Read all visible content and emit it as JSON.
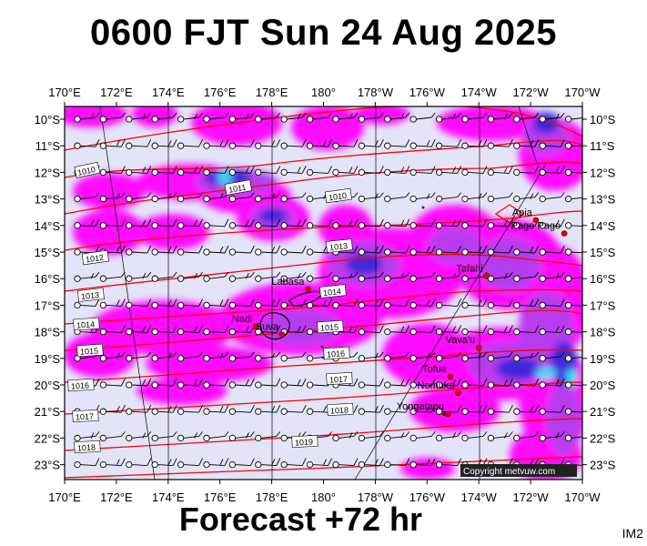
{
  "title": "0600 FJT Sun 24 Aug 2025",
  "subtitle": "Forecast +72 hr",
  "corner_label": "IM2",
  "copyright": "Copyright metvuw.com",
  "lon_ticks": [
    "170°E",
    "172°E",
    "174°E",
    "176°E",
    "178°E",
    "180°",
    "178°W",
    "176°W",
    "174°W",
    "172°W",
    "170°W"
  ],
  "lat_ticks": [
    "10°S",
    "11°S",
    "12°S",
    "13°S",
    "14°S",
    "15°S",
    "16°S",
    "17°S",
    "18°S",
    "19°S",
    "20°S",
    "21°S",
    "22°S",
    "23°S"
  ],
  "places": [
    {
      "name": "Apia",
      "lon": -171.8,
      "lat": -13.8
    },
    {
      "name": "Pago Pago",
      "lon": -170.7,
      "lat": -14.3
    },
    {
      "name": "Tafahi",
      "lon": -173.7,
      "lat": -15.9
    },
    {
      "name": "Labasa",
      "lon": 179.4,
      "lat": -16.4
    },
    {
      "name": "Nadi",
      "lon": 177.4,
      "lat": -17.8
    },
    {
      "name": "Suva",
      "lon": 178.4,
      "lat": -18.1
    },
    {
      "name": "Vava'u",
      "lon": -174.0,
      "lat": -18.6
    },
    {
      "name": "Tofua",
      "lon": -175.1,
      "lat": -19.7
    },
    {
      "name": "Nomuka",
      "lon": -174.8,
      "lat": -20.3
    },
    {
      "name": "Yongatapu",
      "lon": -175.2,
      "lat": -21.1
    }
  ],
  "isobar_labels": [
    "1010",
    "1011",
    "1010",
    "1012",
    "1013",
    "1014",
    "1013",
    "1014",
    "1015",
    "1015",
    "1016",
    "1016",
    "1017",
    "1017",
    "1018",
    "1018",
    "1019"
  ],
  "colors": {
    "background": "#e4e4f8",
    "rain_light": "#ff00ff",
    "rain_moderate": "#b040ee",
    "rain_heavy": "#3a28d8",
    "rain_very_heavy": "#2ee0ee",
    "isobar": "#ff0000",
    "wind_barb": "#000000"
  }
}
